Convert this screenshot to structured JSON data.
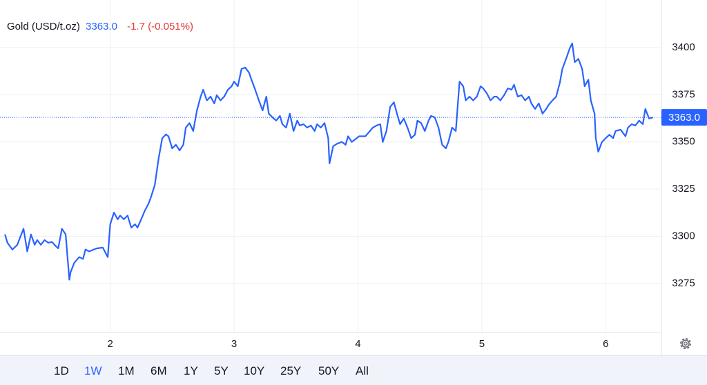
{
  "chart_data": {
    "type": "line",
    "title": "Gold (USD/t.oz)",
    "change": "-1.7 (-0.051%)",
    "color": "#2962ff",
    "price_line": {
      "value": 3363,
      "label": "3363.0"
    },
    "x": [
      1.15,
      1.17,
      1.21,
      1.25,
      1.27,
      1.3,
      1.33,
      1.36,
      1.39,
      1.41,
      1.44,
      1.47,
      1.5,
      1.53,
      1.55,
      1.58,
      1.61,
      1.64,
      1.67,
      1.68,
      1.71,
      1.75,
      1.78,
      1.8,
      1.83,
      1.89,
      1.94,
      1.98,
      2.0,
      2.03,
      2.06,
      2.08,
      2.11,
      2.14,
      2.17,
      2.2,
      2.22,
      2.25,
      2.28,
      2.31,
      2.33,
      2.36,
      2.39,
      2.42,
      2.45,
      2.47,
      2.5,
      2.53,
      2.56,
      2.59,
      2.61,
      2.64,
      2.67,
      2.7,
      2.73,
      2.75,
      2.78,
      2.81,
      2.84,
      2.86,
      2.89,
      2.92,
      2.95,
      2.98,
      3.0,
      3.03,
      3.06,
      3.09,
      3.12,
      3.14,
      3.17,
      3.2,
      3.23,
      3.26,
      3.28,
      3.31,
      3.34,
      3.37,
      3.39,
      3.42,
      3.45,
      3.48,
      3.51,
      3.53,
      3.56,
      3.59,
      3.62,
      3.65,
      3.67,
      3.7,
      3.73,
      3.76,
      3.77,
      3.8,
      3.83,
      3.87,
      3.9,
      3.92,
      3.95,
      4.01,
      4.06,
      4.12,
      4.15,
      4.18,
      4.2,
      4.23,
      4.26,
      4.29,
      4.32,
      4.34,
      4.37,
      4.4,
      4.43,
      4.46,
      4.48,
      4.51,
      4.54,
      4.57,
      4.59,
      4.62,
      4.65,
      4.68,
      4.71,
      4.73,
      4.76,
      4.79,
      4.82,
      4.85,
      4.87,
      4.9,
      4.93,
      4.96,
      4.99,
      5.01,
      5.04,
      5.07,
      5.1,
      5.12,
      5.15,
      5.18,
      5.21,
      5.24,
      5.26,
      5.29,
      5.32,
      5.35,
      5.38,
      5.4,
      5.43,
      5.46,
      5.49,
      5.52,
      5.54,
      5.57,
      5.6,
      5.63,
      5.65,
      5.68,
      5.71,
      5.73,
      5.75,
      5.78,
      5.81,
      5.83,
      5.86,
      5.88,
      5.91,
      5.92,
      5.94,
      5.97,
      6.0,
      6.03,
      6.06,
      6.08,
      6.12,
      6.16,
      6.18,
      6.21,
      6.24,
      6.27,
      6.3,
      6.32,
      6.35,
      6.38
    ],
    "values": [
      3301,
      3296.6,
      3293,
      3295.5,
      3299,
      3304,
      3292,
      3301,
      3295.5,
      3298,
      3295.5,
      3298,
      3296.6,
      3297,
      3295.5,
      3293.6,
      3304,
      3301,
      3277,
      3281,
      3286,
      3289,
      3288,
      3293,
      3292,
      3293.6,
      3294,
      3289,
      3306.4,
      3312.6,
      3309,
      3311,
      3309,
      3311,
      3304.6,
      3306.4,
      3304.6,
      3309,
      3313.7,
      3317.4,
      3321,
      3327.3,
      3341,
      3352,
      3354,
      3353,
      3346.6,
      3348.5,
      3345.5,
      3348.5,
      3357.6,
      3360,
      3355.8,
      3366.7,
      3374,
      3377.7,
      3372,
      3374,
      3370.4,
      3374.8,
      3372,
      3374,
      3377.7,
      3379.5,
      3382,
      3379.5,
      3388.7,
      3389.4,
      3386.8,
      3383,
      3377.7,
      3372,
      3366.7,
      3374,
      3365,
      3363,
      3361.3,
      3363.8,
      3359.4,
      3357.6,
      3365,
      3355.8,
      3361.3,
      3358.7,
      3359.4,
      3357.6,
      3358.7,
      3355.8,
      3359.4,
      3357.6,
      3360,
      3352,
      3338.6,
      3347.7,
      3349,
      3350,
      3348.5,
      3353,
      3350,
      3353,
      3353,
      3357.6,
      3358.7,
      3359.4,
      3350,
      3355.8,
      3368.6,
      3371,
      3363.8,
      3359.4,
      3362.4,
      3357.6,
      3352,
      3353.8,
      3361.3,
      3360,
      3355.8,
      3361.3,
      3363.8,
      3363,
      3357.6,
      3348.5,
      3346.6,
      3350,
      3357.6,
      3355.8,
      3382,
      3379.5,
      3372,
      3374,
      3372,
      3374,
      3379.5,
      3378.4,
      3375.8,
      3372,
      3374,
      3374,
      3372,
      3374.8,
      3378.4,
      3377.7,
      3380.3,
      3374,
      3374.8,
      3372,
      3374,
      3370.4,
      3367.5,
      3370.4,
      3365,
      3367.5,
      3369.7,
      3372,
      3374,
      3381.4,
      3388.7,
      3394,
      3399.6,
      3402.2,
      3392.3,
      3394,
      3388.7,
      3379.5,
      3383,
      3372,
      3365,
      3352,
      3344.8,
      3350,
      3352,
      3353.8,
      3352,
      3355.8,
      3356.5,
      3353,
      3357.6,
      3359.4,
      3358.7,
      3361.3,
      3359.4,
      3367.5,
      3362.4,
      3363
    ],
    "xlim": [
      1.11,
      6.45
    ],
    "xticks": [
      2,
      3,
      4,
      5,
      6
    ],
    "ylim": [
      3249,
      3425.2
    ],
    "yticks": [
      3275,
      3300,
      3325,
      3350,
      3375,
      3400
    ],
    "grid": true,
    "ranges": [
      "1D",
      "1W",
      "1M",
      "6M",
      "1Y",
      "5Y",
      "10Y",
      "25Y",
      "50Y",
      "All"
    ]
  }
}
